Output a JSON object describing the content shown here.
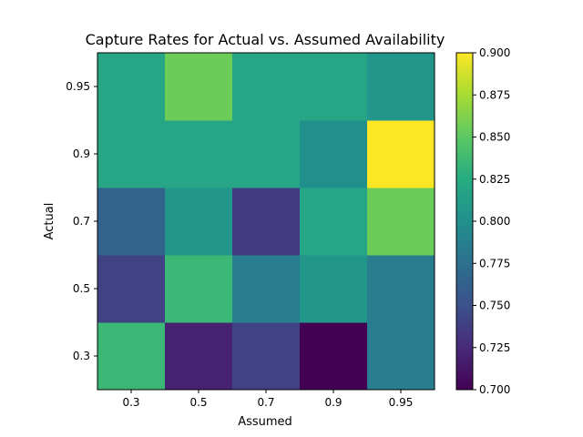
{
  "chart_data": {
    "type": "heatmap",
    "title": "Capture Rates for Actual vs. Assumed Availability",
    "xlabel": "Assumed",
    "ylabel": "Actual",
    "x_categories": [
      "0.3",
      "0.5",
      "0.7",
      "0.9",
      "0.95"
    ],
    "y_categories": [
      "0.3",
      "0.5",
      "0.7",
      "0.9",
      "0.95"
    ],
    "values": [
      [
        0.835,
        0.72,
        0.74,
        0.7,
        0.785
      ],
      [
        0.74,
        0.835,
        0.785,
        0.805,
        0.785
      ],
      [
        0.765,
        0.805,
        0.735,
        0.82,
        0.855
      ],
      [
        0.82,
        0.82,
        0.82,
        0.8,
        0.9
      ],
      [
        0.82,
        0.855,
        0.82,
        0.82,
        0.805
      ]
    ],
    "colorbar": {
      "min": 0.7,
      "max": 0.9,
      "ticks": [
        "0.700",
        "0.725",
        "0.750",
        "0.775",
        "0.800",
        "0.825",
        "0.850",
        "0.875",
        "0.900"
      ]
    },
    "colormap": "viridis",
    "grid": false
  }
}
